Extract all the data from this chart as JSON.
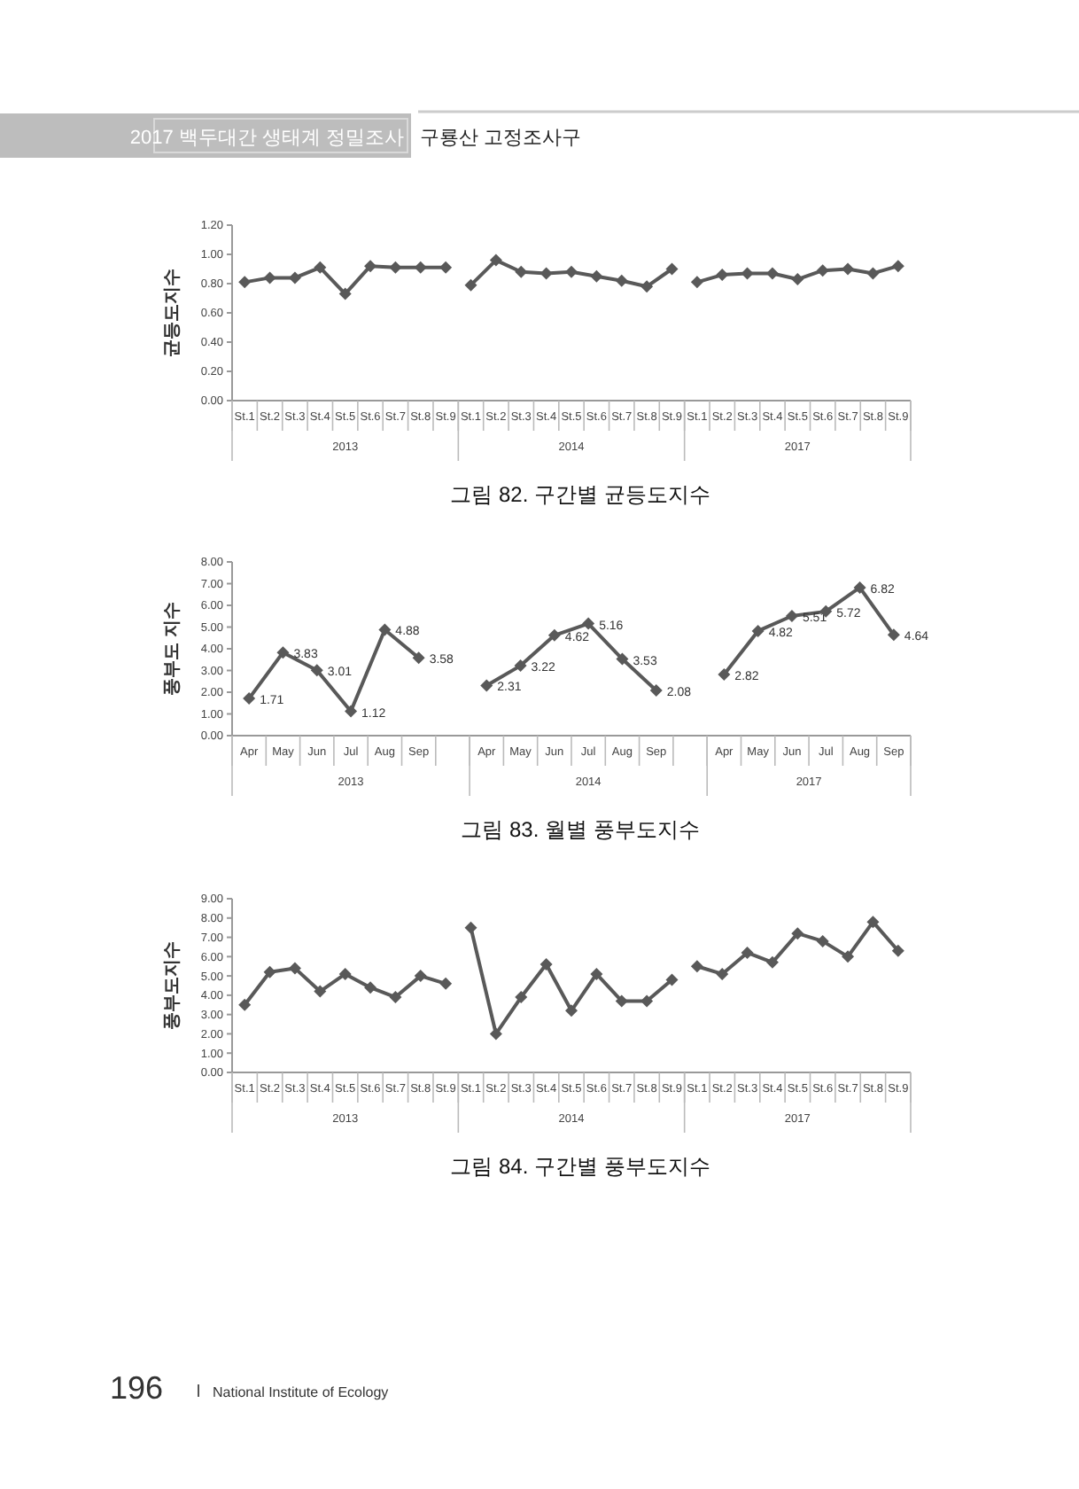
{
  "chart_data": [
    {
      "type": "line",
      "title": "그림 82. 구간별 균등도지수",
      "ylabel": "균등도지수",
      "annotations": [
        "2013",
        "2014",
        "2017",
        "2017 백두대간 생태계 정밀조사",
        "구룡산 고정조사구"
      ],
      "categories": [
        "St.1",
        "St.2",
        "St.3",
        "St.4",
        "St.5",
        "St.6",
        "St.7",
        "St.8",
        "St.9",
        "St.1",
        "St.2",
        "St.3",
        "St.4",
        "St.5",
        "St.6",
        "St.7",
        "St.8",
        "St.9",
        "St.1",
        "St.2",
        "St.3",
        "St.4",
        "St.5",
        "St.6",
        "St.7",
        "St.8",
        "St.9"
      ],
      "series": [
        {
          "color": "#595959",
          "values": [
            0.81,
            0.84,
            0.84,
            0.91,
            0.73,
            0.92,
            0.91,
            0.91,
            0.91,
            null,
            null,
            null,
            null,
            null,
            null,
            null,
            null,
            null,
            null,
            null,
            null,
            null,
            null,
            null,
            null,
            null,
            null
          ]
        },
        {
          "color": "#595959",
          "values": [
            null,
            null,
            null,
            null,
            null,
            null,
            null,
            null,
            null,
            0.79,
            0.96,
            0.88,
            0.87,
            0.88,
            0.85,
            0.82,
            0.78,
            0.9,
            null,
            null,
            null,
            null,
            null,
            null,
            null,
            null,
            null
          ]
        },
        {
          "color": "#595959",
          "values": [
            null,
            null,
            null,
            null,
            null,
            null,
            null,
            null,
            null,
            null,
            null,
            null,
            null,
            null,
            null,
            null,
            null,
            null,
            0.81,
            0.86,
            0.87,
            0.87,
            0.83,
            0.89,
            0.9,
            0.87,
            0.92
          ]
        }
      ],
      "ylim": [
        0,
        1.2
      ],
      "yticks": [
        {
          "value": 0,
          "label": "0.00"
        },
        {
          "value": 0.2,
          "label": "0.20"
        },
        {
          "value": 0.4,
          "label": "0.40"
        },
        {
          "value": 0.6,
          "label": "0.60"
        },
        {
          "value": 0.8,
          "label": "0.80"
        },
        {
          "value": 1.0,
          "label": "1.00"
        },
        {
          "value": 1.2,
          "label": "1.20"
        }
      ],
      "marker": "diamond"
    },
    {
      "type": "line",
      "title": "그림 83. 월별 풍부도지수",
      "ylabel": "풍부도 지수",
      "annotations": [
        "2013",
        "2014",
        "2017"
      ],
      "categories": [
        "Apr",
        "May",
        "Jun",
        "Jul",
        "Aug",
        "Sep",
        null,
        "Apr",
        "May",
        "Jun",
        "Jul",
        "Aug",
        "Sep",
        null,
        "Apr",
        "May",
        "Jun",
        "Jul",
        "Aug",
        "Sep"
      ],
      "series": [
        {
          "color": "#595959",
          "values": [
            1.71,
            3.83,
            3.01,
            1.12,
            4.88,
            3.58,
            null,
            null,
            null,
            null,
            null,
            null,
            null,
            null,
            null,
            null,
            null,
            null,
            null,
            null
          ]
        },
        {
          "color": "#595959",
          "values": [
            null,
            null,
            null,
            null,
            null,
            null,
            null,
            2.31,
            3.22,
            4.62,
            5.16,
            3.53,
            2.08,
            null,
            null,
            null,
            null,
            null,
            null,
            null
          ]
        },
        {
          "color": "#595959",
          "values": [
            null,
            null,
            null,
            null,
            null,
            null,
            null,
            null,
            null,
            null,
            null,
            null,
            null,
            null,
            2.82,
            4.82,
            5.51,
            5.72,
            6.82,
            4.64
          ]
        }
      ],
      "ylim": [
        0,
        8
      ],
      "yticks": [
        {
          "value": 0,
          "label": "0.00"
        },
        {
          "value": 1,
          "label": "1.00"
        },
        {
          "value": 2,
          "label": "2.00"
        },
        {
          "value": 3,
          "label": "3.00"
        },
        {
          "value": 4,
          "label": "4.00"
        },
        {
          "value": 5,
          "label": "5.00"
        },
        {
          "value": 6,
          "label": "6.00"
        },
        {
          "value": 7,
          "label": "7.00"
        },
        {
          "value": 8,
          "label": "8.00"
        }
      ],
      "marker": "diamond",
      "data_labels": true
    },
    {
      "type": "line",
      "title": "그림 84. 구간별 풍부도지수",
      "ylabel": "풍부도지수",
      "annotations": [
        "2013",
        "2014",
        "2017",
        "196",
        "National Institute of Ecology"
      ],
      "categories": [
        "St.1",
        "St.2",
        "St.3",
        "St.4",
        "St.5",
        "St.6",
        "St.7",
        "St.8",
        "St.9",
        "St.1",
        "St.2",
        "St.3",
        "St.4",
        "St.5",
        "St.6",
        "St.7",
        "St.8",
        "St.9",
        "St.1",
        "St.2",
        "St.3",
        "St.4",
        "St.5",
        "St.6",
        "St.7",
        "St.8",
        "St.9"
      ],
      "series": [
        {
          "color": "#595959",
          "values": [
            3.5,
            5.2,
            5.4,
            4.2,
            5.1,
            4.4,
            3.9,
            5.0,
            4.6,
            null,
            null,
            null,
            null,
            null,
            null,
            null,
            null,
            null,
            null,
            null,
            null,
            null,
            null,
            null,
            null,
            null,
            null
          ]
        },
        {
          "color": "#595959",
          "values": [
            null,
            null,
            null,
            null,
            null,
            null,
            null,
            null,
            null,
            7.5,
            2.0,
            3.9,
            5.6,
            3.2,
            5.1,
            3.7,
            3.7,
            4.8,
            null,
            null,
            null,
            null,
            null,
            null,
            null,
            null,
            null
          ]
        },
        {
          "color": "#595959",
          "values": [
            null,
            null,
            null,
            null,
            null,
            null,
            null,
            null,
            null,
            null,
            null,
            null,
            null,
            null,
            null,
            null,
            null,
            null,
            5.5,
            5.1,
            6.2,
            5.7,
            7.2,
            6.8,
            6.0,
            7.8,
            6.3
          ]
        }
      ],
      "ylim": [
        0,
        9
      ],
      "yticks": [
        {
          "value": 0,
          "label": "0.00"
        },
        {
          "value": 1,
          "label": "1.00"
        },
        {
          "value": 2,
          "label": "2.00"
        },
        {
          "value": 3,
          "label": "3.00"
        },
        {
          "value": 4,
          "label": "4.00"
        },
        {
          "value": 5,
          "label": "5.00"
        },
        {
          "value": 6,
          "label": "6.00"
        },
        {
          "value": 7,
          "label": "7.00"
        },
        {
          "value": 8,
          "label": "8.00"
        },
        {
          "value": 9,
          "label": "9.00"
        }
      ],
      "marker": "diamond"
    }
  ]
}
